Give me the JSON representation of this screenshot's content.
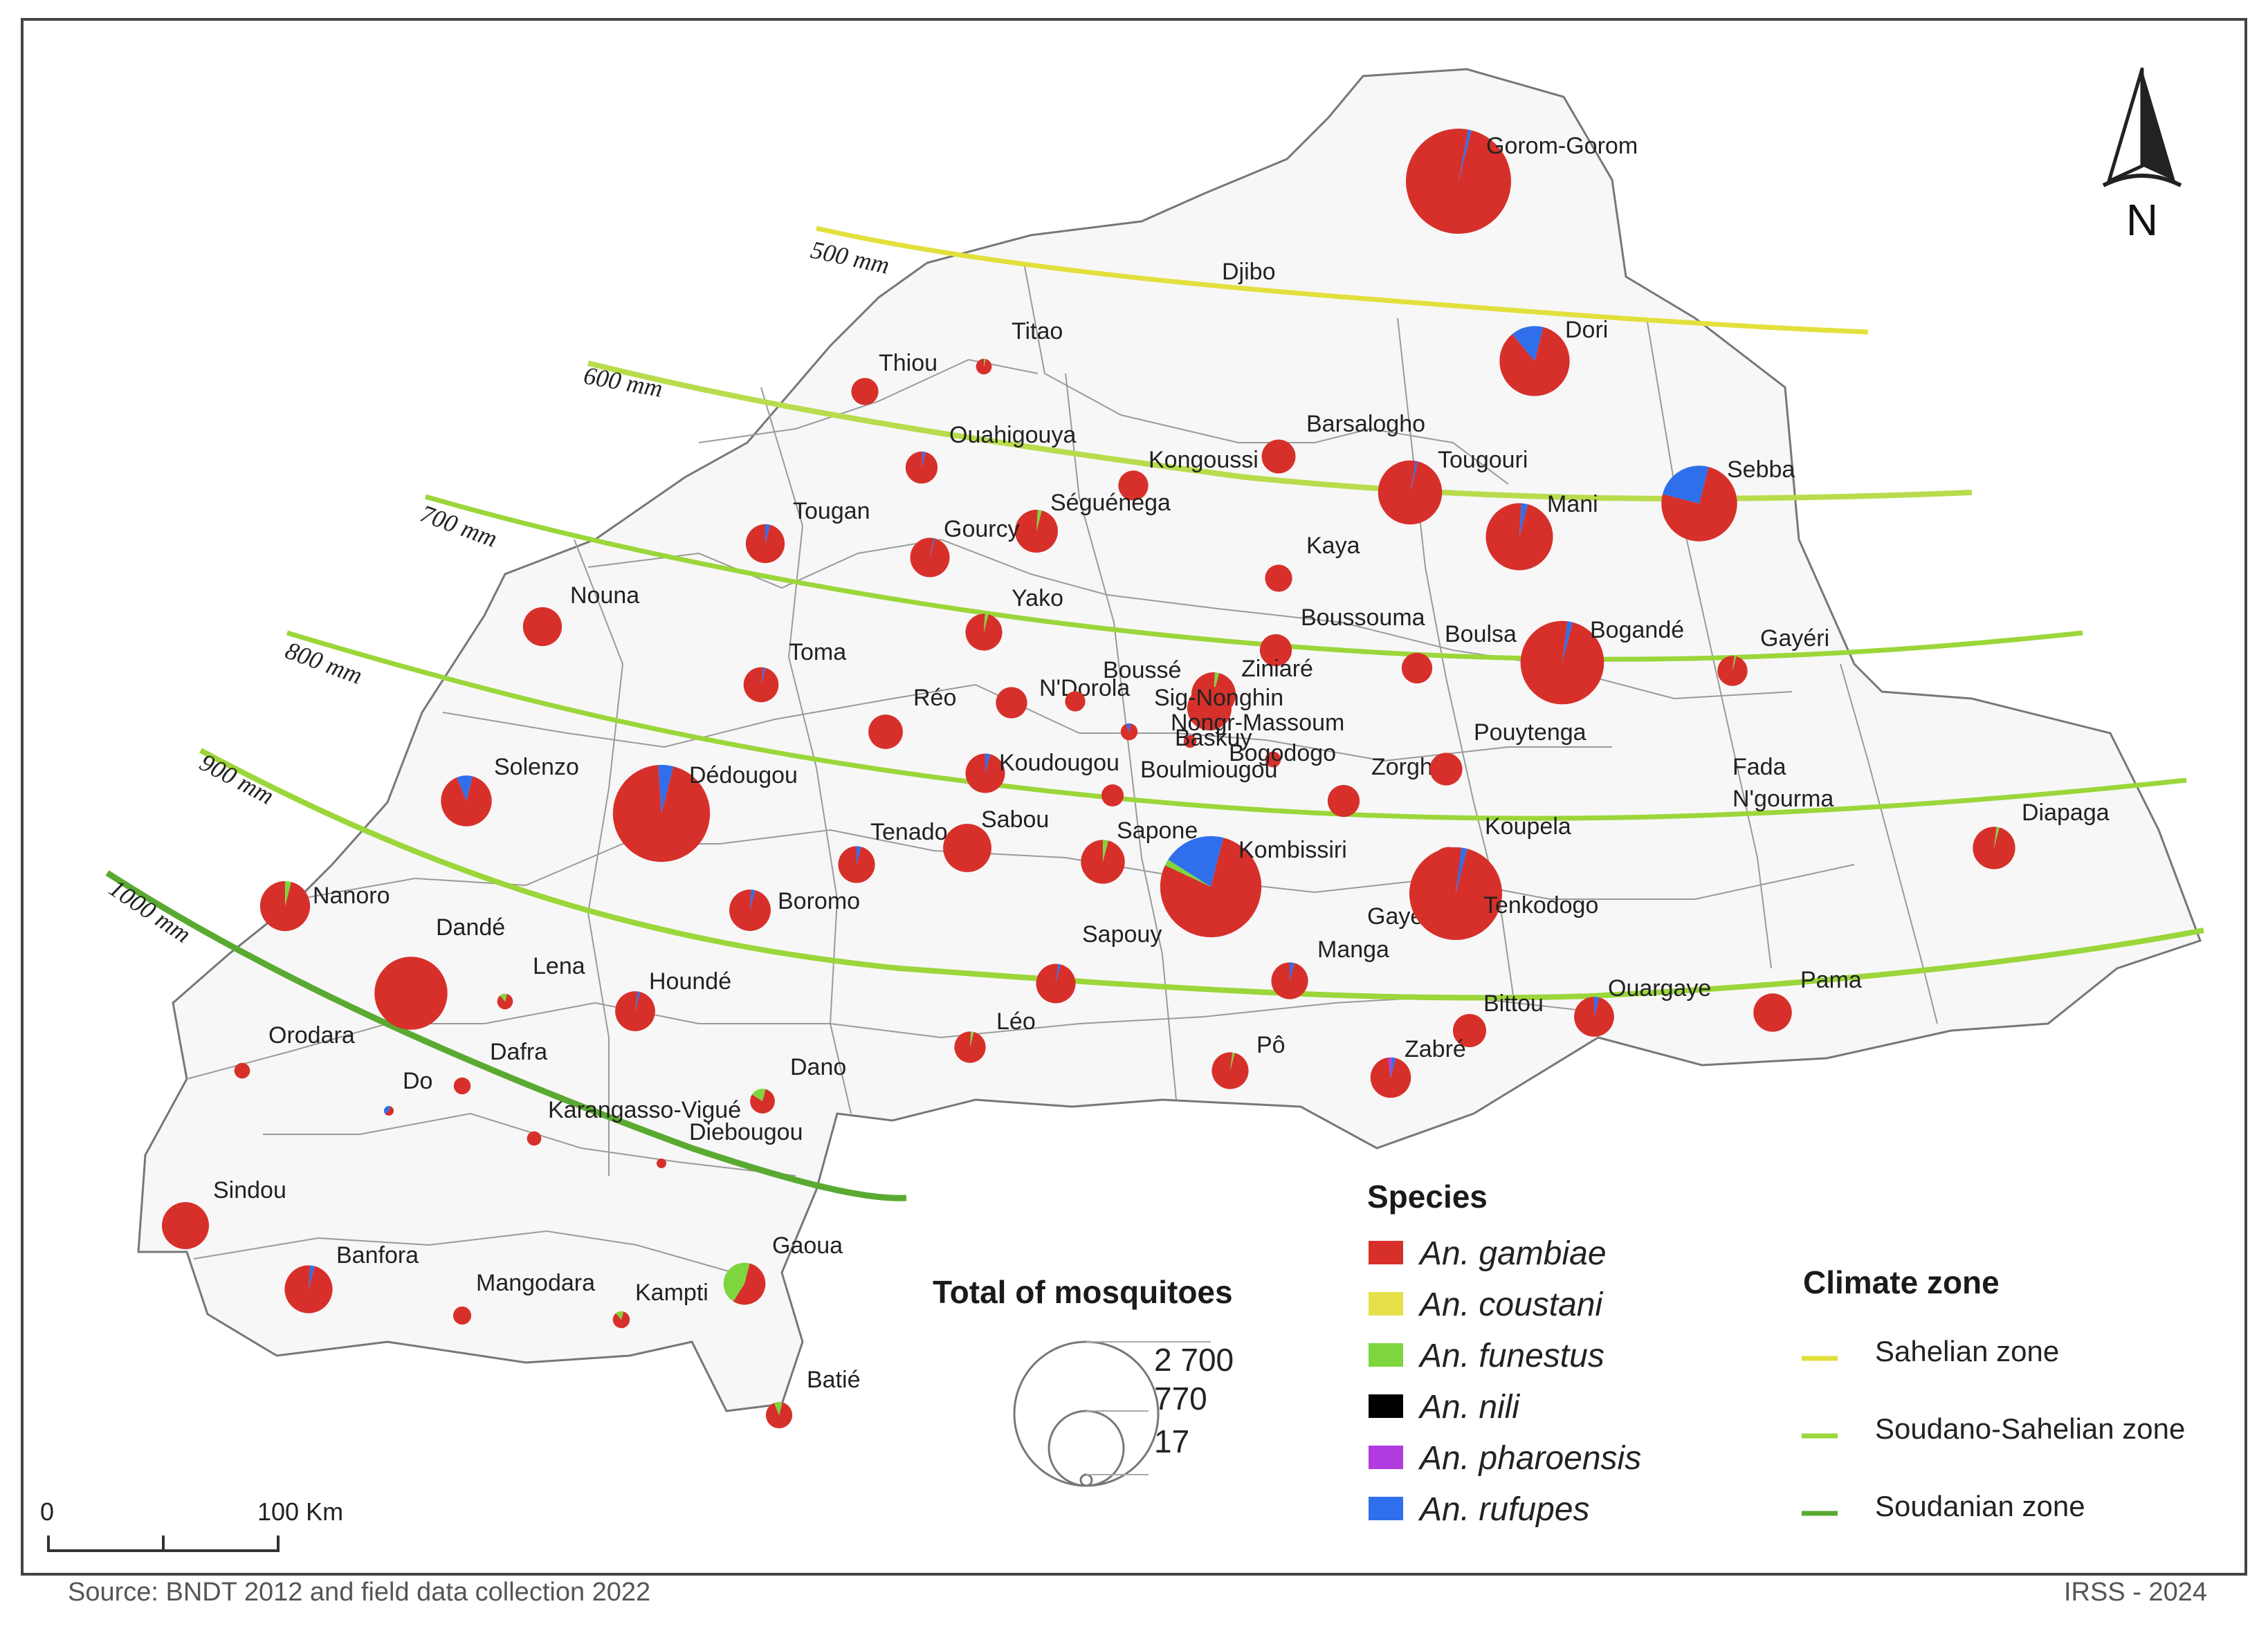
{
  "colors": {
    "gambiae": "#d7302b",
    "coustani": "#e6e04a",
    "funestus": "#7ed63e",
    "nili": "#000000",
    "pharoensis": "#b23be0",
    "rufupes": "#2f6fec",
    "sahelian": "#e2e03c",
    "soudano_sahelian": "#9bd63a",
    "soudanian": "#5aaa32",
    "border": "#777777"
  },
  "north_arrow": {
    "label": "N"
  },
  "isohyets": [
    {
      "label": "500 mm",
      "zone": "sahelian"
    },
    {
      "label": "600 mm",
      "zone": "soudano_sahelian"
    },
    {
      "label": "700 mm",
      "zone": "soudano_sahelian"
    },
    {
      "label": "800 mm",
      "zone": "soudano_sahelian"
    },
    {
      "label": "900 mm",
      "zone": "soudano_sahelian"
    },
    {
      "label": "1000 mm",
      "zone": "soudanian"
    }
  ],
  "place_labels": [
    "Djibo",
    "Gayeri",
    "Dandé",
    "Sapouy",
    "Manga",
    "Léo",
    "Pô",
    "Fada",
    "N'gourma"
  ],
  "sites": [
    {
      "name": "Gorom-Gorom",
      "total": 2700,
      "share": {
        "gambiae": 0.99,
        "rufupes": 0.01
      }
    },
    {
      "name": "Dori",
      "total": 1200,
      "share": {
        "gambiae": 0.85,
        "rufupes": 0.15
      }
    },
    {
      "name": "Titao",
      "total": 60,
      "share": {
        "gambiae": 0.96,
        "funestus": 0.04
      }
    },
    {
      "name": "Thiou",
      "total": 180,
      "share": {
        "gambiae": 1
      }
    },
    {
      "name": "Ouahigouya",
      "total": 250,
      "share": {
        "gambiae": 0.97,
        "rufupes": 0.03
      }
    },
    {
      "name": "Barsalogho",
      "total": 280,
      "share": {
        "gambiae": 1
      }
    },
    {
      "name": "Kongoussi",
      "total": 220,
      "share": {
        "gambiae": 1
      }
    },
    {
      "name": "Tougouri",
      "total": 1000,
      "share": {
        "gambiae": 0.99,
        "rufupes": 0.01
      }
    },
    {
      "name": "Sebba",
      "total": 1400,
      "share": {
        "gambiae": 0.75,
        "rufupes": 0.25
      }
    },
    {
      "name": "Mani",
      "total": 1100,
      "share": {
        "gambiae": 0.97,
        "rufupes": 0.03
      }
    },
    {
      "name": "Tougan",
      "total": 370,
      "share": {
        "gambiae": 0.96,
        "rufupes": 0.04
      }
    },
    {
      "name": "Séguénega",
      "total": 450,
      "share": {
        "gambiae": 0.97,
        "funestus": 0.03
      }
    },
    {
      "name": "Gourcy",
      "total": 380,
      "share": {
        "gambiae": 0.99,
        "rufupes": 0.01
      }
    },
    {
      "name": "Kaya",
      "total": 180,
      "share": {
        "gambiae": 1
      }
    },
    {
      "name": "Nouna",
      "total": 370,
      "share": {
        "gambiae": 1
      }
    },
    {
      "name": "Yako",
      "total": 330,
      "share": {
        "gambiae": 0.97,
        "funestus": 0.03
      }
    },
    {
      "name": "Boussouma",
      "total": 250,
      "share": {
        "gambiae": 1
      }
    },
    {
      "name": "Boulsa",
      "total": 230,
      "share": {
        "gambiae": 1
      }
    },
    {
      "name": "Bogandé",
      "total": 1700,
      "share": {
        "gambiae": 0.98,
        "rufupes": 0.02
      }
    },
    {
      "name": "Gayéri",
      "total": 220,
      "share": {
        "gambiae": 0.98,
        "funestus": 0.02
      }
    },
    {
      "name": "Toma",
      "total": 300,
      "share": {
        "gambiae": 0.98,
        "rufupes": 0.02
      }
    },
    {
      "name": "Réo",
      "total": 290,
      "share": {
        "gambiae": 1
      }
    },
    {
      "name": "N'Dorola",
      "total": 240,
      "share": {
        "gambiae": 1
      }
    },
    {
      "name": "Boussé",
      "total": 100,
      "share": {
        "gambiae": 1
      }
    },
    {
      "name": "Ziniaré",
      "total": 480,
      "share": {
        "gambiae": 0.97,
        "funestus": 0.03
      }
    },
    {
      "name": "Sig-Nonghin",
      "total": 480,
      "share": {
        "gambiae": 1
      }
    },
    {
      "name": "Nongr-Massoum",
      "total": 70,
      "share": {
        "gambiae": 0.9,
        "rufupes": 0.1
      }
    },
    {
      "name": "Baskuy",
      "total": 40,
      "share": {
        "gambiae": 1
      }
    },
    {
      "name": "Bogodogo",
      "total": 60,
      "share": {
        "gambiae": 1
      }
    },
    {
      "name": "Boulmiougou",
      "total": 120,
      "share": {
        "gambiae": 1
      }
    },
    {
      "name": "Koudougou",
      "total": 380,
      "share": {
        "gambiae": 0.96,
        "rufupes": 0.04
      }
    },
    {
      "name": "Zorgho",
      "total": 250,
      "share": {
        "gambiae": 1
      }
    },
    {
      "name": "Pouytenga",
      "total": 260,
      "share": {
        "gambiae": 1
      }
    },
    {
      "name": "Solenzo",
      "total": 630,
      "share": {
        "gambiae": 0.9,
        "rufupes": 0.1
      }
    },
    {
      "name": "Dédougou",
      "total": 2300,
      "share": {
        "gambiae": 0.95,
        "rufupes": 0.05
      }
    },
    {
      "name": "Tenado",
      "total": 330,
      "share": {
        "gambiae": 0.96,
        "rufupes": 0.04
      }
    },
    {
      "name": "Sabou",
      "total": 570,
      "share": {
        "gambiae": 1
      }
    },
    {
      "name": "Sapone",
      "total": 470,
      "share": {
        "gambiae": 0.96,
        "funestus": 0.04
      }
    },
    {
      "name": "Kombissiri",
      "total": 2500,
      "share": {
        "gambiae": 0.78,
        "rufupes": 0.2,
        "funestus": 0.02
      }
    },
    {
      "name": "Koupela",
      "total": 300,
      "share": {
        "gambiae": 1
      }
    },
    {
      "name": "Tenkodogo",
      "total": 2100,
      "share": {
        "gambiae": 0.98,
        "rufupes": 0.02
      }
    },
    {
      "name": "Diapaga",
      "total": 440,
      "share": {
        "gambiae": 0.98,
        "funestus": 0.02
      }
    },
    {
      "name": "Nanoro",
      "total": 610,
      "share": {
        "gambiae": 0.96,
        "funestus": 0.04
      }
    },
    {
      "name": "Boromo",
      "total": 420,
      "share": {
        "gambiae": 0.97,
        "rufupes": 0.03
      }
    },
    {
      "name": "Dandé",
      "total": 1300,
      "share": {
        "gambiae": 1
      }
    },
    {
      "name": "Lena",
      "total": 60,
      "share": {
        "gambiae": 0.85,
        "funestus": 0.15
      }
    },
    {
      "name": "Houndé",
      "total": 390,
      "share": {
        "gambiae": 0.98,
        "rufupes": 0.02
      }
    },
    {
      "name": "Sapouy",
      "total": 380,
      "share": {
        "gambiae": 0.98,
        "rufupes": 0.02
      }
    },
    {
      "name": "Manga",
      "total": 330,
      "share": {
        "gambiae": 0.96,
        "rufupes": 0.04
      }
    },
    {
      "name": "Ouargaye",
      "total": 390,
      "share": {
        "gambiae": 0.96,
        "rufupes": 0.04
      }
    },
    {
      "name": "Pama",
      "total": 360,
      "share": {
        "gambiae": 1
      }
    },
    {
      "name": "Bittou",
      "total": 270,
      "share": {
        "gambiae": 1
      }
    },
    {
      "name": "Léo",
      "total": 240,
      "share": {
        "gambiae": 0.97,
        "funestus": 0.03
      }
    },
    {
      "name": "Pô",
      "total": 330,
      "share": {
        "gambiae": 0.98,
        "funestus": 0.02
      }
    },
    {
      "name": "Zabré",
      "total": 400,
      "share": {
        "gambiae": 0.94,
        "pharoensis": 0.03,
        "rufupes": 0.03
      }
    },
    {
      "name": "Orodara",
      "total": 60,
      "share": {
        "gambiae": 1
      }
    },
    {
      "name": "Dafra",
      "total": 70,
      "share": {
        "gambiae": 1
      }
    },
    {
      "name": "Do",
      "total": 20,
      "share": {
        "gambiae": 0.6,
        "rufupes": 0.4
      }
    },
    {
      "name": "Dano",
      "total": 150,
      "share": {
        "gambiae": 0.8,
        "funestus": 0.2
      }
    },
    {
      "name": "Karangasso-Vigué",
      "total": 50,
      "share": {
        "gambiae": 1
      }
    },
    {
      "name": "Diebougou",
      "total": 17,
      "share": {
        "gambiae": 1
      }
    },
    {
      "name": "Sindou",
      "total": 540,
      "share": {
        "gambiae": 1
      }
    },
    {
      "name": "Banfora",
      "total": 560,
      "share": {
        "gambiae": 0.97,
        "rufupes": 0.03
      }
    },
    {
      "name": "Mangodara",
      "total": 80,
      "share": {
        "gambiae": 1
      }
    },
    {
      "name": "Kampti",
      "total": 70,
      "share": {
        "gambiae": 0.85,
        "funestus": 0.15
      }
    },
    {
      "name": "Gaoua",
      "total": 430,
      "share": {
        "gambiae": 0.55,
        "funestus": 0.45
      }
    },
    {
      "name": "Batié",
      "total": 170,
      "share": {
        "gambiae": 0.9,
        "funestus": 0.1
      }
    }
  ],
  "size_legend": {
    "title": "Total of mosquitoes",
    "values": [
      "2 700",
      "770",
      "17"
    ]
  },
  "species_legend": {
    "title": "Species",
    "items": [
      {
        "key": "gambiae",
        "label": "An. gambiae"
      },
      {
        "key": "coustani",
        "label": "An. coustani"
      },
      {
        "key": "funestus",
        "label": "An. funestus"
      },
      {
        "key": "nili",
        "label": "An. nili"
      },
      {
        "key": "pharoensis",
        "label": "An. pharoensis"
      },
      {
        "key": "rufupes",
        "label": "An. rufupes"
      }
    ]
  },
  "climate_legend": {
    "title": "Climate zone",
    "items": [
      {
        "key": "sahelian",
        "label": "Sahelian zone"
      },
      {
        "key": "soudano_sahelian",
        "label": "Soudano-Sahelian zone"
      },
      {
        "key": "soudanian",
        "label": "Soudanian zone"
      }
    ]
  },
  "scale_bar": {
    "start": "0",
    "end": "100 Km"
  },
  "footer": {
    "source": "Source: BNDT 2012 and field data collection 2022",
    "credit": "IRSS - 2024"
  }
}
